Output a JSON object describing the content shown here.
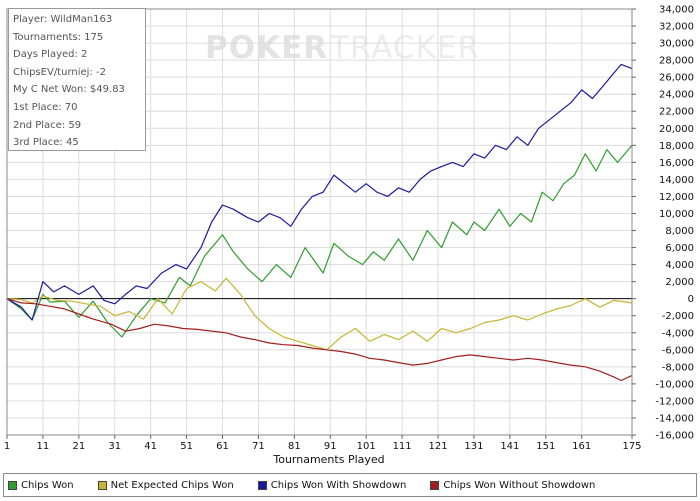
{
  "stats": {
    "lines": [
      "Player: WildMan163",
      "Tournaments: 175",
      "Days Played: 2",
      "ChipsEV/turniej: -2",
      "My C Net Won: $49.83",
      "1st Place: 70",
      "2nd Place: 59",
      "3rd Place: 45"
    ]
  },
  "watermark": {
    "part1": "POKER",
    "part2": "TRACKER"
  },
  "chart_data": {
    "type": "line",
    "title": "",
    "xlabel": "Tournaments Played",
    "ylabel": "",
    "xlim": [
      1,
      175
    ],
    "ylim": [
      -16000,
      34000
    ],
    "x_ticks": [
      1,
      11,
      21,
      31,
      41,
      51,
      61,
      71,
      81,
      91,
      101,
      111,
      121,
      131,
      141,
      151,
      161,
      175
    ],
    "y_ticks": [
      34000,
      32000,
      30000,
      28000,
      26000,
      24000,
      22000,
      20000,
      18000,
      16000,
      14000,
      12000,
      10000,
      8000,
      6000,
      4000,
      2000,
      0,
      -2000,
      -4000,
      -6000,
      -8000,
      -10000,
      -12000,
      -14000,
      -16000
    ],
    "y_tick_labels": [
      "34,000",
      "32,000",
      "30,000",
      "28,000",
      "26,000",
      "24,000",
      "22,000",
      "20,000",
      "18,000",
      "16,000",
      "14,000",
      "12,000",
      "10,000",
      "8,000",
      "6,000",
      "4,000",
      "2,000",
      "0",
      "-2,000",
      "-4,000",
      "-6,000",
      "-8,000",
      "-10,000",
      "-12,000",
      "-14,000",
      "-16,000"
    ],
    "y_axis_position": "right",
    "grid": true,
    "legend_position": "bottom",
    "series": [
      {
        "name": "Chips Won",
        "color": "#2e9e2e",
        "x": [
          1,
          5,
          8,
          11,
          13,
          17,
          21,
          25,
          29,
          33,
          37,
          41,
          45,
          49,
          52,
          56,
          61,
          64,
          68,
          72,
          76,
          80,
          84,
          89,
          92,
          96,
          100,
          103,
          106,
          110,
          114,
          118,
          122,
          125,
          129,
          131,
          134,
          138,
          141,
          144,
          147,
          150,
          153,
          156,
          159,
          162,
          165,
          168,
          171,
          175
        ],
        "values": [
          0,
          -1200,
          -2500,
          500,
          -400,
          -300,
          -2200,
          -300,
          -2800,
          -4500,
          -2000,
          0,
          -500,
          2500,
          1500,
          5000,
          7500,
          5500,
          3500,
          2000,
          4000,
          2500,
          6000,
          3000,
          6500,
          5000,
          4000,
          5500,
          4500,
          7000,
          4500,
          8000,
          6000,
          9000,
          7500,
          9000,
          8000,
          10500,
          8500,
          10000,
          9000,
          12500,
          11500,
          13500,
          14500,
          17000,
          15000,
          17500,
          16000,
          18000
        ]
      },
      {
        "name": "Net Expected Chips Won",
        "color": "#c8b432",
        "x": [
          1,
          5,
          8,
          11,
          15,
          19,
          23,
          27,
          31,
          35,
          39,
          43,
          47,
          51,
          55,
          59,
          62,
          66,
          70,
          74,
          78,
          82,
          86,
          90,
          94,
          98,
          102,
          106,
          110,
          114,
          118,
          122,
          126,
          130,
          134,
          138,
          142,
          146,
          150,
          154,
          158,
          162,
          166,
          170,
          175
        ],
        "values": [
          0,
          -100,
          -500,
          300,
          -200,
          -300,
          -600,
          -900,
          -2000,
          -1500,
          -2400,
          0,
          -1800,
          1200,
          2000,
          900,
          2400,
          500,
          -2000,
          -3500,
          -4500,
          -5000,
          -5500,
          -6000,
          -4500,
          -3500,
          -5000,
          -4200,
          -4800,
          -3800,
          -5000,
          -3500,
          -4000,
          -3500,
          -2800,
          -2500,
          -2000,
          -2500,
          -1800,
          -1200,
          -800,
          0,
          -1000,
          -200,
          -500
        ]
      },
      {
        "name": "Chips Won With Showdown",
        "color": "#1a1a9e",
        "x": [
          1,
          5,
          8,
          11,
          14,
          17,
          21,
          25,
          28,
          31,
          34,
          37,
          40,
          44,
          48,
          51,
          55,
          58,
          61,
          64,
          68,
          71,
          74,
          77,
          80,
          83,
          86,
          89,
          92,
          95,
          98,
          101,
          104,
          107,
          110,
          113,
          116,
          119,
          122,
          125,
          128,
          131,
          134,
          137,
          140,
          143,
          146,
          149,
          152,
          155,
          158,
          161,
          164,
          167,
          170,
          172,
          175
        ],
        "values": [
          0,
          -1000,
          -2500,
          2000,
          800,
          1500,
          500,
          1500,
          -200,
          -600,
          500,
          1500,
          1200,
          3000,
          4000,
          3500,
          6000,
          9000,
          11000,
          10500,
          9500,
          9000,
          10000,
          9500,
          8500,
          10500,
          12000,
          12500,
          14500,
          13500,
          12500,
          13500,
          12500,
          12000,
          13000,
          12500,
          14000,
          15000,
          15500,
          16000,
          15500,
          17000,
          16500,
          18000,
          17500,
          19000,
          18000,
          20000,
          21000,
          22000,
          23000,
          24500,
          23500,
          25000,
          26500,
          27500,
          27000
        ]
      },
      {
        "name": "Chips Won Without Showdown",
        "color": "#a51e1e",
        "x": [
          1,
          5,
          9,
          13,
          17,
          21,
          25,
          30,
          34,
          38,
          42,
          46,
          50,
          54,
          58,
          62,
          66,
          70,
          74,
          78,
          82,
          86,
          90,
          94,
          98,
          102,
          106,
          110,
          114,
          118,
          122,
          126,
          130,
          134,
          138,
          142,
          146,
          150,
          154,
          158,
          162,
          166,
          170,
          172,
          175
        ],
        "values": [
          0,
          -500,
          -600,
          -900,
          -1200,
          -1800,
          -2400,
          -3000,
          -3800,
          -3500,
          -3000,
          -3200,
          -3500,
          -3600,
          -3800,
          -4000,
          -4500,
          -4800,
          -5200,
          -5400,
          -5500,
          -5800,
          -6000,
          -6200,
          -6500,
          -7000,
          -7200,
          -7500,
          -7800,
          -7600,
          -7200,
          -6800,
          -6600,
          -6800,
          -7000,
          -7200,
          -7000,
          -7200,
          -7500,
          -7800,
          -8000,
          -8500,
          -9200,
          -9600,
          -9000
        ]
      }
    ]
  }
}
